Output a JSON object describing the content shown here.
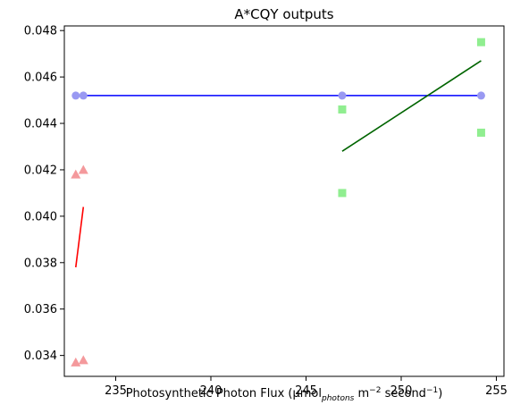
{
  "chart_data": {
    "type": "scatter",
    "title": "A*CQY outputs",
    "xlabel": {
      "prefix": "Photosynthetic Photon Flux (µmol",
      "sub": "photons",
      "mid": " m",
      "sup1": "−2",
      "after": " second",
      "sup2": "−1",
      "suffix": ")"
    },
    "ylabel": "",
    "xlim": [
      232.3,
      255.4
    ],
    "ylim": [
      0.0331,
      0.0482
    ],
    "xticks": [
      235,
      240,
      245,
      250,
      255
    ],
    "yticks": [
      0.034,
      0.036,
      0.038,
      0.04,
      0.042,
      0.044,
      0.046,
      0.048
    ],
    "ytick_labels": [
      "0.034",
      "0.036",
      "0.038",
      "0.040",
      "0.042",
      "0.044",
      "0.046",
      "0.048"
    ],
    "grid": false,
    "series": [
      {
        "marker": "triangle",
        "color": "#f4999c",
        "points": [
          [
            232.9,
            0.0418
          ],
          [
            233.3,
            0.042
          ],
          [
            232.9,
            0.0337
          ],
          [
            233.3,
            0.0338
          ]
        ]
      },
      {
        "marker": "circle",
        "color": "#9999f2",
        "points": [
          [
            232.9,
            0.0452
          ],
          [
            233.3,
            0.0452
          ],
          [
            246.9,
            0.0452
          ],
          [
            254.2,
            0.0452
          ]
        ]
      },
      {
        "marker": "square",
        "color": "#90ee90",
        "points": [
          [
            246.9,
            0.0446
          ],
          [
            246.9,
            0.041
          ],
          [
            254.2,
            0.0475
          ],
          [
            254.2,
            0.0436
          ]
        ]
      }
    ],
    "lines": [
      {
        "color": "#ff0000",
        "points": [
          [
            232.9,
            0.0378
          ],
          [
            233.3,
            0.0404
          ]
        ]
      },
      {
        "color": "#0000ff",
        "points": [
          [
            232.9,
            0.0452
          ],
          [
            254.2,
            0.0452
          ]
        ]
      },
      {
        "color": "#006400",
        "points": [
          [
            246.9,
            0.0428
          ],
          [
            254.2,
            0.0467
          ]
        ]
      }
    ]
  }
}
